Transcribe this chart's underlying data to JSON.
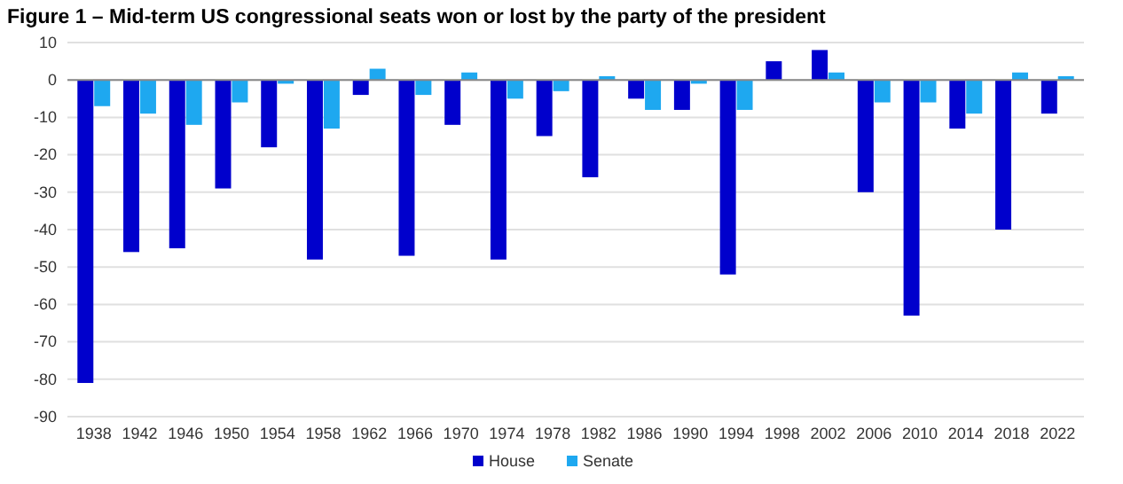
{
  "chart_data": {
    "type": "bar",
    "title": "Figure 1 – Mid-term US congressional seats won or lost by the party of the president",
    "categories": [
      "1938",
      "1942",
      "1946",
      "1950",
      "1954",
      "1958",
      "1962",
      "1966",
      "1970",
      "1974",
      "1978",
      "1982",
      "1986",
      "1990",
      "1994",
      "1998",
      "2002",
      "2006",
      "2010",
      "2014",
      "2018",
      "2022"
    ],
    "series": [
      {
        "name": "House",
        "color": "#0000cc",
        "values": [
          -81,
          -46,
          -45,
          -29,
          -18,
          -48,
          -4,
          -47,
          -12,
          -48,
          -15,
          -26,
          -5,
          -8,
          -52,
          5,
          8,
          -30,
          -63,
          -13,
          -40,
          -9
        ]
      },
      {
        "name": "Senate",
        "color": "#1ea8f0",
        "values": [
          -7,
          -9,
          -12,
          -6,
          -1,
          -13,
          3,
          -4,
          2,
          -5,
          -3,
          1,
          -8,
          -1,
          -8,
          0,
          2,
          -6,
          -6,
          -9,
          2,
          1
        ]
      }
    ],
    "ylim": [
      -90,
      10
    ],
    "yticks": [
      -90,
      -80,
      -70,
      -60,
      -50,
      -40,
      -30,
      -20,
      -10,
      0,
      10
    ],
    "grid": "y",
    "legend": "bottom"
  }
}
